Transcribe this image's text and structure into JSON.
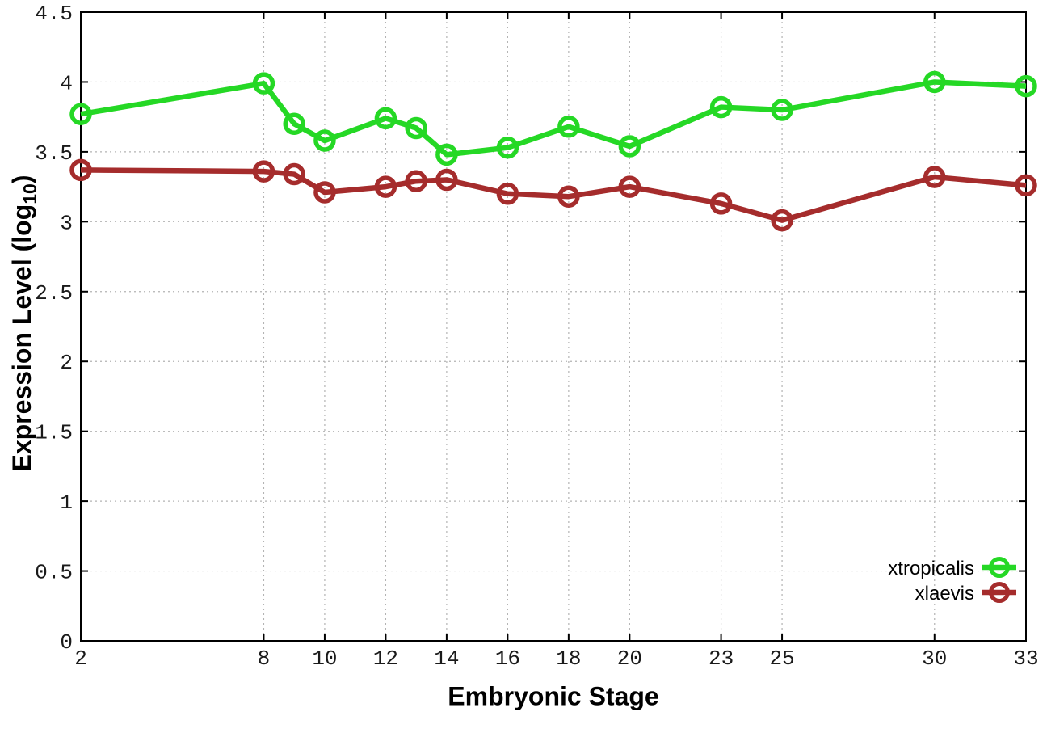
{
  "chart_data": {
    "type": "line",
    "title": "",
    "xlabel": "Embryonic Stage",
    "ylabel_main": "Expression Level (log",
    "ylabel_sub": "10",
    "ylabel_close": ")",
    "xlim": [
      2,
      33
    ],
    "ylim": [
      0,
      4.5
    ],
    "x_ticks": [
      2,
      8,
      10,
      12,
      14,
      16,
      18,
      20,
      23,
      25,
      30,
      33
    ],
    "x_tick_labels": [
      "2",
      "8",
      "10",
      "12",
      "14",
      "16",
      "18",
      "20",
      "23",
      "25",
      "30",
      "33"
    ],
    "y_ticks": [
      0,
      0.5,
      1,
      1.5,
      2,
      2.5,
      3,
      3.5,
      4,
      4.5
    ],
    "y_tick_labels": [
      "0",
      "0.5",
      "1",
      "1.5",
      "2",
      "2.5",
      "3",
      "3.5",
      "4",
      "4.5"
    ],
    "grid": true,
    "grid_style": "dotted",
    "legend_position": "inside-bottom-right",
    "marker": "open-circle",
    "x": [
      2,
      8,
      9,
      10,
      12,
      13,
      14,
      16,
      18,
      20,
      23,
      25,
      30,
      33
    ],
    "series": [
      {
        "name": "xtropicalis",
        "color": "#25d825",
        "values": [
          3.77,
          3.99,
          3.7,
          3.58,
          3.74,
          3.67,
          3.48,
          3.53,
          3.68,
          3.54,
          3.82,
          3.8,
          4.0,
          3.97
        ]
      },
      {
        "name": "xlaevis",
        "color": "#a52c2c",
        "values": [
          3.37,
          3.36,
          3.34,
          3.21,
          3.25,
          3.29,
          3.3,
          3.2,
          3.18,
          3.25,
          3.13,
          3.01,
          3.32,
          3.26
        ]
      }
    ],
    "colors": {
      "background": "#ffffff",
      "axis": "#000000",
      "grid": "#b3b3b3",
      "tick_text": "#1a1a1a"
    }
  }
}
